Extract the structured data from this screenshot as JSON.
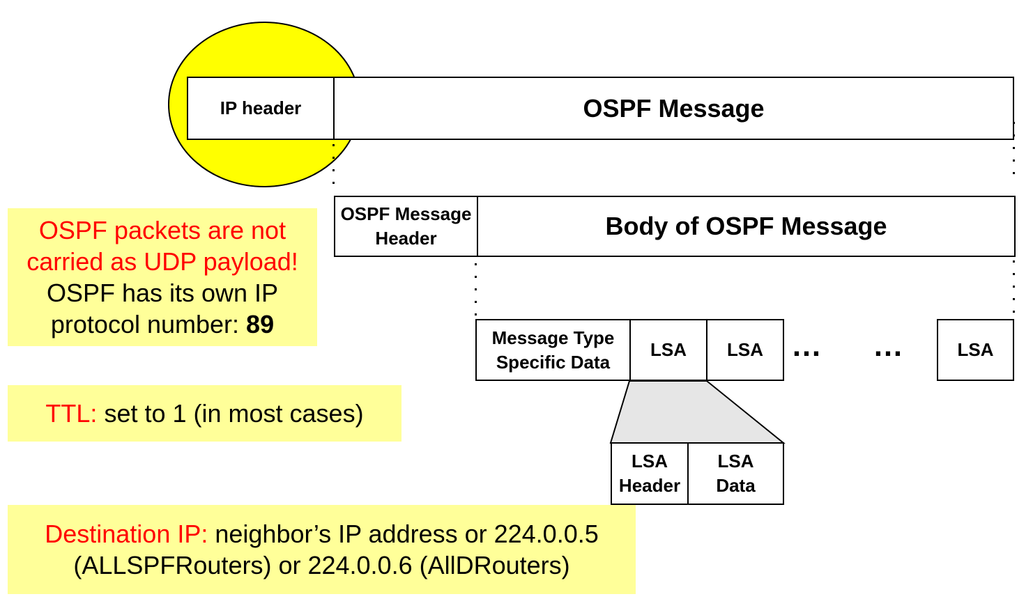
{
  "colors": {
    "highlight": "#ffff00",
    "note_bg": "#ffff99",
    "emphasis": "#ff0000",
    "callout_fill": "#e6e6e6"
  },
  "ip_header": "IP header",
  "ospf_message": "OSPF Message",
  "ospf_message_header": [
    "OSPF Message",
    "Header"
  ],
  "body_of_ospf_message": "Body of OSPF Message",
  "message_type_specific_data": [
    "Message Type",
    "Specific Data"
  ],
  "lsa_1": "LSA",
  "lsa_2": "LSA",
  "ellipsis_1": "…",
  "ellipsis_2": "…",
  "lsa_last": "LSA",
  "lsa_header": [
    "LSA",
    "Header"
  ],
  "lsa_data": [
    "LSA",
    "Data"
  ],
  "note_protocol": {
    "line1": "OSPF packets are not",
    "line2": "carried as UDP payload!",
    "line3": "OSPF has its own IP",
    "line4_prefix": "protocol number: ",
    "line4_value": "89"
  },
  "note_ttl": {
    "label": "TTL:",
    "text": " set to 1 (in most cases)"
  },
  "note_destination": {
    "label": "Destination IP:",
    "line1_text": " neighbor’s IP address or 224.0.0.5",
    "line2": "(ALLSPFRouters) or 224.0.0.6 (AllDRouters)"
  }
}
